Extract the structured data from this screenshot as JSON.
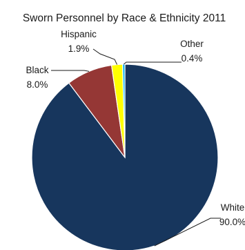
{
  "chart_data": {
    "type": "pie",
    "title": "Sworn Personnel by Race & Ethnicity 2011",
    "slices": [
      {
        "label": "White",
        "value": 90.0,
        "value_label": "90.0%",
        "color": "#17365d"
      },
      {
        "label": "Black",
        "value": 8.0,
        "value_label": "8.0%",
        "color": "#953735"
      },
      {
        "label": "Hispanic",
        "value": 1.9,
        "value_label": "1.9%",
        "color": "#ffff00"
      },
      {
        "label": "Other",
        "value": 0.4,
        "value_label": "0.4%",
        "color": "#00b0f0"
      }
    ],
    "legend": "none"
  }
}
